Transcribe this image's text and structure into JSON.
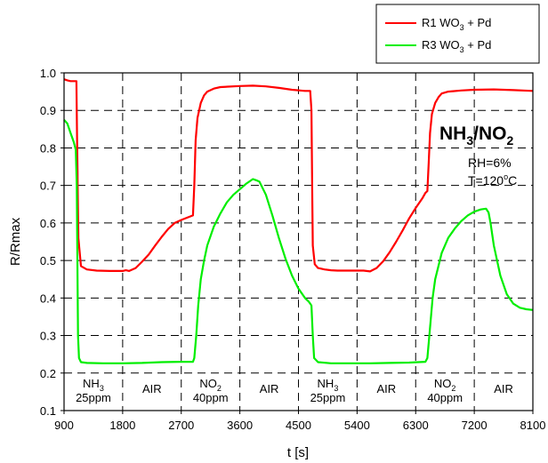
{
  "chart_data": {
    "type": "line",
    "title": "",
    "xlabel": "t [s]",
    "ylabel": "R/Rmax",
    "xlim": [
      900,
      8100
    ],
    "ylim": [
      0.1,
      1.0
    ],
    "x_ticks": [
      "900",
      "1800",
      "2700",
      "3600",
      "4500",
      "5400",
      "6300",
      "7200",
      "8100"
    ],
    "y_ticks": [
      "0.1",
      "0.2",
      "0.3",
      "0.4",
      "0.5",
      "0.6",
      "0.7",
      "0.8",
      "0.9",
      "1.0"
    ],
    "grid": true,
    "legend_position": "top-right",
    "series": [
      {
        "name": "R1 WO3 + Pd",
        "name_parts": [
          "R1 WO",
          "3",
          " + Pd"
        ],
        "color": "#ff0000",
        "x": [
          900,
          950,
          1000,
          1060,
          1090,
          1100,
          1120,
          1160,
          1250,
          1400,
          1600,
          1800,
          1850,
          1900,
          2000,
          2100,
          2200,
          2300,
          2400,
          2500,
          2600,
          2700,
          2800,
          2880,
          2900,
          2920,
          2950,
          3000,
          3050,
          3100,
          3200,
          3300,
          3600,
          3800,
          4000,
          4200,
          4400,
          4600,
          4680,
          4700,
          4710,
          4720,
          4750,
          4800,
          4900,
          5000,
          5100,
          5300,
          5500,
          5600,
          5700,
          5800,
          5900,
          6000,
          6100,
          6200,
          6300,
          6400,
          6450,
          6480,
          6500,
          6520,
          6550,
          6600,
          6650,
          6700,
          6800,
          7000,
          7200,
          7500,
          7800,
          8100
        ],
        "values": [
          0.983,
          0.98,
          0.978,
          0.978,
          0.978,
          0.83,
          0.56,
          0.485,
          0.476,
          0.473,
          0.472,
          0.472,
          0.474,
          0.472,
          0.48,
          0.497,
          0.516,
          0.54,
          0.563,
          0.584,
          0.6,
          0.608,
          0.615,
          0.62,
          0.7,
          0.82,
          0.88,
          0.92,
          0.94,
          0.95,
          0.958,
          0.962,
          0.965,
          0.966,
          0.964,
          0.96,
          0.955,
          0.952,
          0.952,
          0.9,
          0.7,
          0.54,
          0.49,
          0.48,
          0.476,
          0.474,
          0.473,
          0.473,
          0.473,
          0.471,
          0.48,
          0.498,
          0.522,
          0.55,
          0.58,
          0.612,
          0.64,
          0.665,
          0.68,
          0.685,
          0.76,
          0.84,
          0.89,
          0.92,
          0.935,
          0.945,
          0.95,
          0.953,
          0.955,
          0.956,
          0.954,
          0.952
        ]
      },
      {
        "name": "R3 WO3 + Pd",
        "name_parts": [
          "R3 WO",
          "3",
          " + Pd"
        ],
        "color": "#00ee00",
        "x": [
          900,
          950,
          1000,
          1050,
          1080,
          1095,
          1105,
          1115,
          1130,
          1160,
          1250,
          1500,
          1800,
          2100,
          2400,
          2700,
          2880,
          2900,
          2930,
          2960,
          3000,
          3050,
          3100,
          3200,
          3300,
          3400,
          3500,
          3600,
          3700,
          3800,
          3850,
          3900,
          4000,
          4100,
          4200,
          4300,
          4400,
          4500,
          4600,
          4660,
          4680,
          4700,
          4720,
          4740,
          4800,
          5000,
          5300,
          5600,
          5900,
          6200,
          6450,
          6480,
          6500,
          6530,
          6560,
          6600,
          6700,
          6800,
          6900,
          7000,
          7100,
          7200,
          7300,
          7380,
          7420,
          7450,
          7500,
          7600,
          7700,
          7800,
          7900,
          8000,
          8100
        ],
        "values": [
          0.875,
          0.865,
          0.84,
          0.815,
          0.795,
          0.7,
          0.5,
          0.3,
          0.24,
          0.229,
          0.227,
          0.226,
          0.226,
          0.227,
          0.229,
          0.23,
          0.23,
          0.24,
          0.3,
          0.38,
          0.45,
          0.5,
          0.54,
          0.59,
          0.625,
          0.655,
          0.675,
          0.69,
          0.705,
          0.717,
          0.714,
          0.71,
          0.675,
          0.62,
          0.56,
          0.505,
          0.46,
          0.425,
          0.4,
          0.39,
          0.385,
          0.38,
          0.3,
          0.24,
          0.229,
          0.226,
          0.226,
          0.226,
          0.227,
          0.228,
          0.23,
          0.24,
          0.28,
          0.34,
          0.4,
          0.45,
          0.52,
          0.56,
          0.585,
          0.605,
          0.62,
          0.63,
          0.636,
          0.638,
          0.628,
          0.6,
          0.54,
          0.46,
          0.41,
          0.385,
          0.374,
          0.37,
          0.368
        ]
      }
    ],
    "big_label": {
      "base1": "NH",
      "sub1": "3",
      "mid": "/NO",
      "sub2": "2"
    },
    "conditions": {
      "rh": "RH=6%",
      "temp_prefix": "T=120",
      "temp_sup": "o",
      "temp_suffix": "C"
    },
    "regions": [
      {
        "id": "nh3-1",
        "lines": [
          {
            "base": "NH",
            "sub": "3"
          },
          {
            "base": "25ppm",
            "sub": ""
          }
        ]
      },
      {
        "id": "air-1",
        "lines": [
          {
            "base": "AIR",
            "sub": ""
          }
        ]
      },
      {
        "id": "no2-1",
        "lines": [
          {
            "base": "NO",
            "sub": "2"
          },
          {
            "base": "40ppm",
            "sub": ""
          }
        ]
      },
      {
        "id": "air-2",
        "lines": [
          {
            "base": "AIR",
            "sub": ""
          }
        ]
      },
      {
        "id": "nh3-2",
        "lines": [
          {
            "base": "NH",
            "sub": "3"
          },
          {
            "base": "25ppm",
            "sub": ""
          }
        ]
      },
      {
        "id": "air-3",
        "lines": [
          {
            "base": "AIR",
            "sub": ""
          }
        ]
      },
      {
        "id": "no2-2",
        "lines": [
          {
            "base": "NO",
            "sub": "2"
          },
          {
            "base": "40ppm",
            "sub": ""
          }
        ]
      },
      {
        "id": "air-4",
        "lines": [
          {
            "base": "AIR",
            "sub": ""
          }
        ]
      }
    ]
  }
}
